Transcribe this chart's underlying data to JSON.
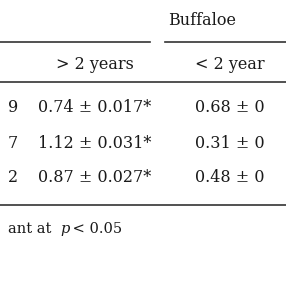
{
  "title_top": "Buffaloe",
  "col_header1": "> 2 years",
  "col_header2": "< 2 year",
  "rows": [
    {
      "left_val": "9",
      "col1": "0.74 ± 0.017*",
      "col2": "0.68 ± 0"
    },
    {
      "left_val": "7",
      "col1": "1.12 ± 0.031*",
      "col2": "0.31 ± 0"
    },
    {
      "left_val": "2",
      "col1": "0.87 ± 0.027*",
      "col2": "0.48 ± 0"
    }
  ],
  "footnote": "ant at p < 0.05",
  "bg_color": "#ffffff",
  "text_color": "#1a1a1a",
  "font_size": 11.5,
  "header_font_size": 11.5,
  "line_color": "#333333",
  "line_width": 1.2
}
